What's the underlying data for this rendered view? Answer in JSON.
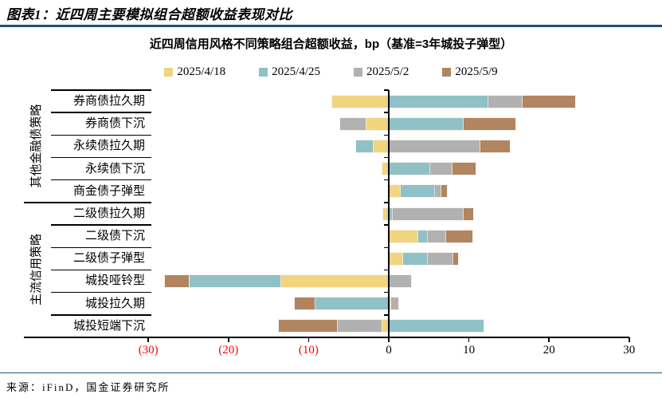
{
  "header": {
    "title": "图表1：近四周主要模拟组合超额收益表现对比"
  },
  "footer": {
    "source": "来源：iFinD，国金证券研究所"
  },
  "colors": {
    "title_rule_blue": "#1F4E79",
    "axis_black": "#000000",
    "negative_tick_red": "#FF0000",
    "series_yellow": "#F0D57E",
    "series_teal": "#8FC1C6",
    "series_gray": "#B1B1B1",
    "series_brown": "#B0855F"
  },
  "chart_data": {
    "type": "bar",
    "orientation": "horizontal",
    "stacked": true,
    "title": "近四周信用风格不同策略组合超额收益，bp（基准=3年城投子弹型）",
    "unit": "bp",
    "baseline_note": "基准=3年城投子弹型",
    "legend_position": "top",
    "grid": false,
    "xlim": [
      -30,
      30
    ],
    "xticks": [
      -30,
      -20,
      -10,
      0,
      10,
      20,
      30
    ],
    "negative_label_format": "parentheses-red",
    "groups": [
      {
        "label": "其他金融债策略",
        "start_row": 0,
        "end_row": 4
      },
      {
        "label": "主流信用策略",
        "start_row": 5,
        "end_row": 10
      }
    ],
    "categories": [
      "券商债拉久期",
      "券商债下沉",
      "永续债拉久期",
      "永续债下沉",
      "商金债子弹型",
      "二级债拉久期",
      "二级债下沉",
      "二级债子弹型",
      "城投哑铃型",
      "城投拉久期",
      "城投短端下沉"
    ],
    "series": [
      {
        "name": "2025/4/18",
        "color": "#F0D57E",
        "values": [
          -7.1,
          -2.9,
          -2.0,
          -0.8,
          1.5,
          -0.7,
          3.7,
          1.8,
          -13.5,
          0.3,
          -0.9
        ]
      },
      {
        "name": "2025/4/25",
        "color": "#8FC1C6",
        "values": [
          12.4,
          9.3,
          -2.1,
          5.2,
          4.3,
          0.5,
          1.2,
          3.1,
          -11.4,
          -9.2,
          11.8
        ]
      },
      {
        "name": "2025/5/2",
        "color": "#B1B1B1",
        "values": [
          4.3,
          -3.2,
          11.4,
          2.8,
          0.8,
          8.8,
          2.3,
          3.2,
          2.8,
          0.9,
          -5.6
        ]
      },
      {
        "name": "2025/5/9",
        "color": "#B0855F",
        "values": [
          6.6,
          6.5,
          3.7,
          2.8,
          0.7,
          1.2,
          3.2,
          0.5,
          -3.0,
          -2.5,
          -7.2
        ]
      }
    ]
  }
}
